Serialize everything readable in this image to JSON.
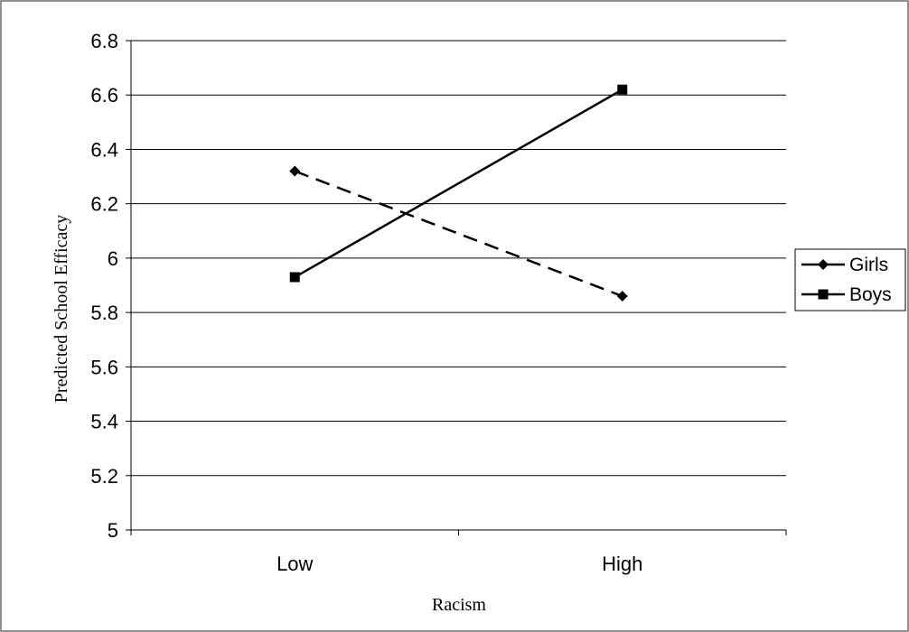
{
  "chart_data": {
    "type": "line",
    "categories": [
      "Low",
      "High"
    ],
    "xlabel": "Racism",
    "ylabel": "Predicted School Efficacy",
    "ylim": [
      5,
      6.8
    ],
    "yticks": [
      "5",
      "5.2",
      "5.4",
      "5.6",
      "5.8",
      "6",
      "6.2",
      "6.4",
      "6.6",
      "6.8"
    ],
    "grid": true,
    "legend_position": "right",
    "series": [
      {
        "name": "Girls",
        "values": [
          6.32,
          5.86
        ],
        "marker": "diamond",
        "line_style": "dashed",
        "color": "#000000"
      },
      {
        "name": "Boys",
        "values": [
          5.93,
          6.62
        ],
        "marker": "square",
        "line_style": "solid",
        "color": "#000000"
      }
    ]
  }
}
